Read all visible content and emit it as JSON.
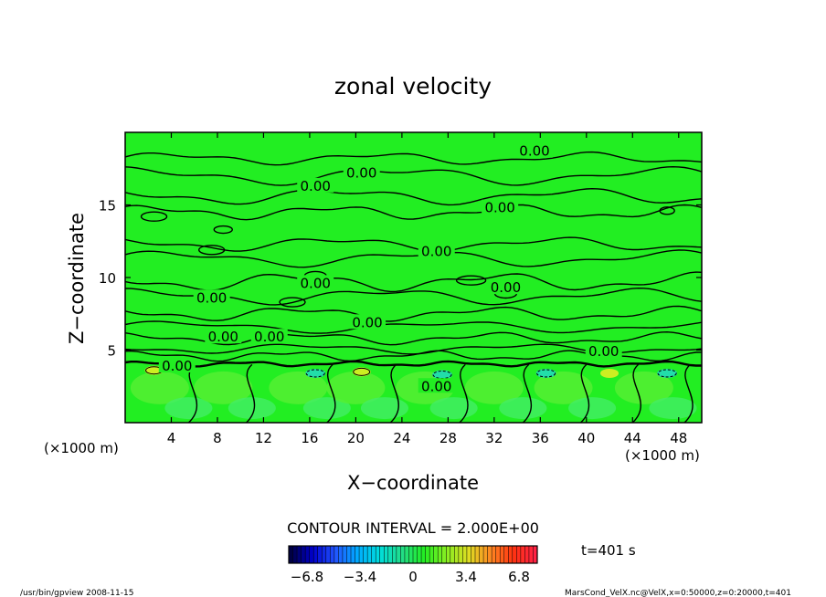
{
  "chart_data": {
    "type": "heatmap",
    "title": "zonal velocity",
    "xlabel": "X−coordinate",
    "ylabel": "Z−coordinate",
    "xlim": [
      0,
      50
    ],
    "ylim": [
      0,
      20
    ],
    "x_unit_left": "(×1000 m)",
    "x_unit_right": "(×1000 m)",
    "x_ticks": [
      4,
      8,
      12,
      16,
      20,
      24,
      28,
      32,
      36,
      40,
      44,
      48
    ],
    "y_ticks": [
      5,
      10,
      15
    ],
    "contour_interval_text": "CONTOUR INTERVAL = 2.000E+00",
    "contour_labels": [
      {
        "x": 35.5,
        "z": 18.7,
        "text": "0.00"
      },
      {
        "x": 20.5,
        "z": 17.2,
        "text": "0.00"
      },
      {
        "x": 16.5,
        "z": 16.3,
        "text": "0.00"
      },
      {
        "x": 32.5,
        "z": 14.8,
        "text": "0.00"
      },
      {
        "x": 27,
        "z": 11.8,
        "text": "0.00"
      },
      {
        "x": 16.5,
        "z": 9.6,
        "text": "0.00"
      },
      {
        "x": 33,
        "z": 9.3,
        "text": "0.00"
      },
      {
        "x": 7.5,
        "z": 8.6,
        "text": "0.00"
      },
      {
        "x": 21,
        "z": 6.9,
        "text": "0.00"
      },
      {
        "x": 8.5,
        "z": 5.9,
        "text": "0.00"
      },
      {
        "x": 12.5,
        "z": 5.9,
        "text": "0.00"
      },
      {
        "x": 41.5,
        "z": 4.9,
        "text": "0.00"
      },
      {
        "x": 4.5,
        "z": 3.9,
        "text": "0.00"
      },
      {
        "x": 27,
        "z": 2.5,
        "text": "0.00"
      }
    ],
    "colorbar": {
      "ticks": [
        "−6.8",
        "−3.4",
        "0",
        "3.4",
        "6.8"
      ],
      "colors": [
        "#000044",
        "#0000cc",
        "#2255ff",
        "#00aaff",
        "#00dddd",
        "#22dd88",
        "#22ee22",
        "#88ee22",
        "#dddd22",
        "#ff8822",
        "#ff3311",
        "#ff2244"
      ]
    },
    "time_label": "t=401 s",
    "footer_left": "/usr/bin/gpview  2008-11-15",
    "footer_right": "MarsCond_VelX.nc@VelX,x=0:50000,z=0:20000,t=401",
    "field_color": "#22ee22",
    "contour_color": "#000000"
  }
}
